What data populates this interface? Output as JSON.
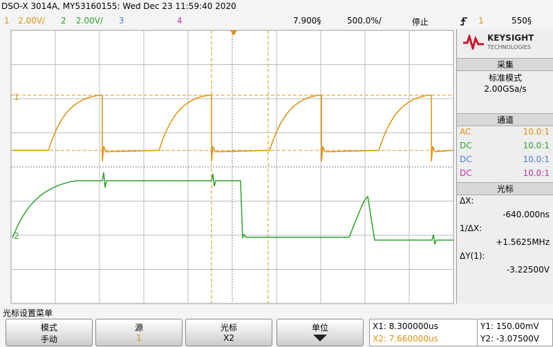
{
  "header": {
    "title": "DSO-X 3014A, MY53160155: Wed Dec 23 11:59:40 2020"
  },
  "status_bar": {
    "ch1_label": "1",
    "ch1_scale": "2.00V/",
    "ch2_label": "2",
    "ch2_scale": "2.00V/",
    "ch3_label": "3",
    "ch4_label": "4",
    "delay": "7.900§",
    "timebase": "500.0%/",
    "run_state": "停止",
    "trigger_source": "1",
    "trigger_level": "550§"
  },
  "graticule": {
    "ch1_marker": "1",
    "ch2_marker": "2"
  },
  "side_panel": {
    "brand": "KEYSIGHT",
    "brand_sub": "TECHNOLOGIES",
    "acquisition": {
      "title": "采集",
      "mode": "标准模式",
      "sample_rate": "2.00GSa/s"
    },
    "channels": {
      "title": "通道",
      "rows": [
        [
          "AC",
          "10.0:1"
        ],
        [
          "DC",
          "10.0:1"
        ],
        [
          "DC",
          "10.0:1"
        ],
        [
          "DC",
          "10.0:1"
        ]
      ]
    },
    "cursors": {
      "title": "光标",
      "dx_label": "ΔX:",
      "dx": "-640.000ns",
      "inv_dx_label": "1/ΔX:",
      "inv_dx": "+1.5625MHz",
      "dy_label": "ΔY(1):",
      "dy": "-3.22500V"
    }
  },
  "menu": {
    "title": "光标设置菜单",
    "softkeys": [
      {
        "label": "模式",
        "value": "手动"
      },
      {
        "label": "源",
        "value": "1"
      },
      {
        "label": "光标",
        "value": "X2"
      },
      {
        "label": "单位"
      }
    ],
    "readouts": {
      "x1": "X1: 8.300000us",
      "x2": "X2: 7.660000us",
      "y1": "Y1: 150.00mV",
      "y2": "Y2: -3.07500V"
    }
  }
}
